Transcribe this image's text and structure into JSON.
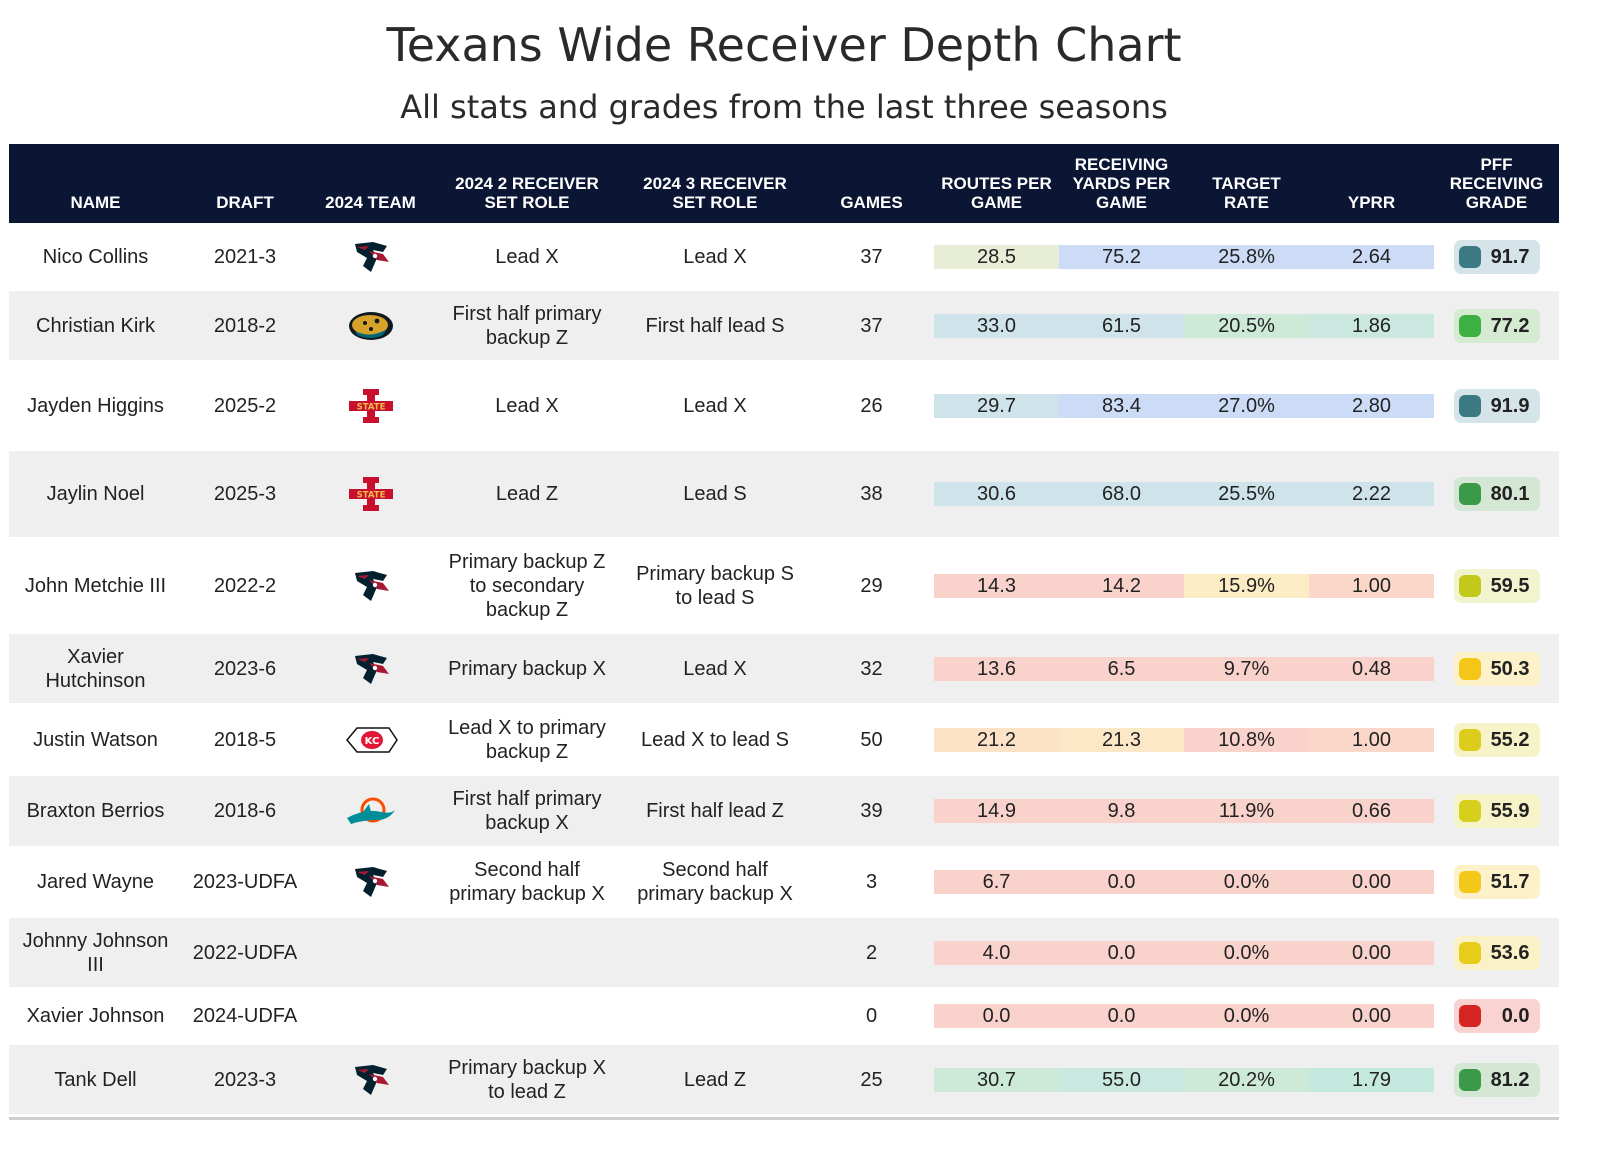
{
  "title": "Texans Wide Receiver Depth Chart",
  "subtitle": "All stats and grades from the last three seasons",
  "chart_data": {
    "type": "table",
    "columns": [
      "NAME",
      "DRAFT",
      "2024 TEAM",
      "2024 2 RECEIVER SET ROLE",
      "2024 3 RECEIVER SET ROLE",
      "GAMES",
      "ROUTES PER GAME",
      "RECEIVING YARDS PER GAME",
      "TARGET RATE",
      "YPRR",
      "PFF RECEIVING GRADE"
    ],
    "rows": [
      {
        "name": "Nico Collins",
        "draft": "2021-3",
        "team": "Texans",
        "team_icon": "texans-logo-icon",
        "role2": "Lead X",
        "role3": "Lead X",
        "games": "37",
        "routes": "28.5",
        "yards": "75.2",
        "target": "25.8%",
        "yprr": "2.64",
        "grade": "91.7",
        "colors": {
          "routes": "#e8edd6",
          "yards": "#ccdcf7",
          "target": "#ccdcf7",
          "yprr": "#ccdcf7",
          "grade_bg": "#d5e4e8",
          "grade_dot": "#3b7a82"
        }
      },
      {
        "name": "Christian Kirk",
        "draft": "2018-2",
        "team": "Jaguars",
        "team_icon": "jaguars-logo-icon",
        "role2": "First half primary backup Z",
        "role3": "First half lead S",
        "games": "37",
        "routes": "33.0",
        "yards": "61.5",
        "target": "20.5%",
        "yprr": "1.86",
        "grade": "77.2",
        "colors": {
          "routes": "#cfe4ea",
          "yards": "#cfe4ea",
          "target": "#cde9d8",
          "yprr": "#cae7e0",
          "grade_bg": "#d4ebd2",
          "grade_dot": "#3cb043"
        }
      },
      {
        "name": "Jayden Higgins",
        "draft": "2025-2",
        "team": "Iowa State",
        "team_icon": "iowa-state-logo-icon",
        "role2": "Lead X",
        "role3": "Lead X",
        "games": "26",
        "routes": "29.7",
        "yards": "83.4",
        "target": "27.0%",
        "yprr": "2.80",
        "grade": "91.9",
        "colors": {
          "routes": "#cfe4ea",
          "yards": "#ccdcf7",
          "target": "#ccdcf7",
          "yprr": "#ccdcf7",
          "grade_bg": "#d5e4e8",
          "grade_dot": "#3b7a82"
        }
      },
      {
        "name": "Jaylin Noel",
        "draft": "2025-3",
        "team": "Iowa State",
        "team_icon": "iowa-state-logo-icon",
        "role2": "Lead Z",
        "role3": "Lead S",
        "games": "38",
        "routes": "30.6",
        "yards": "68.0",
        "target": "25.5%",
        "yprr": "2.22",
        "grade": "80.1",
        "colors": {
          "routes": "#cfe4ea",
          "yards": "#cfe4ea",
          "target": "#cfe4ea",
          "yprr": "#cfe4ea",
          "grade_bg": "#d4e6d4",
          "grade_dot": "#3a9a48"
        }
      },
      {
        "name": "John Metchie III",
        "draft": "2022-2",
        "team": "Texans",
        "team_icon": "texans-logo-icon",
        "role2": "Primary backup Z to secondary backup Z",
        "role3": "Primary backup S to lead S",
        "games": "29",
        "routes": "14.3",
        "yards": "14.2",
        "target": "15.9%",
        "yprr": "1.00",
        "grade": "59.5",
        "colors": {
          "routes": "#fad2cc",
          "yards": "#fad2cc",
          "target": "#fcecc4",
          "yprr": "#fad7c9",
          "grade_bg": "#f1f4cf",
          "grade_dot": "#c3c91a"
        }
      },
      {
        "name": "Xavier Hutchinson",
        "draft": "2023-6",
        "team": "Texans",
        "team_icon": "texans-logo-icon",
        "role2": "Primary backup X",
        "role3": "Lead X",
        "games": "32",
        "routes": "13.6",
        "yards": "6.5",
        "target": "9.7%",
        "yprr": "0.48",
        "grade": "50.3",
        "colors": {
          "routes": "#fad2cc",
          "yards": "#fad2cc",
          "target": "#fad2cc",
          "yprr": "#fad2cc",
          "grade_bg": "#fcf1c8",
          "grade_dot": "#f5c518"
        }
      },
      {
        "name": "Justin Watson",
        "draft": "2018-5",
        "team": "Chiefs",
        "team_icon": "chiefs-logo-icon",
        "role2": "Lead X to primary backup Z",
        "role3": "Lead X to lead S",
        "games": "50",
        "routes": "21.2",
        "yards": "21.3",
        "target": "10.8%",
        "yprr": "1.00",
        "grade": "55.2",
        "colors": {
          "routes": "#fce3c8",
          "yards": "#fce7c6",
          "target": "#fad2cc",
          "yprr": "#fad7c9",
          "grade_bg": "#f6f3c8",
          "grade_dot": "#dccc1c"
        }
      },
      {
        "name": "Braxton Berrios",
        "draft": "2018-6",
        "team": "Dolphins",
        "team_icon": "dolphins-logo-icon",
        "role2": "First half primary backup X",
        "role3": "First half lead Z",
        "games": "39",
        "routes": "14.9",
        "yards": "9.8",
        "target": "11.9%",
        "yprr": "0.66",
        "grade": "55.9",
        "colors": {
          "routes": "#fad2cc",
          "yards": "#fad2cc",
          "target": "#fad2cc",
          "yprr": "#fad2cc",
          "grade_bg": "#f6f3c8",
          "grade_dot": "#d6cf1c"
        }
      },
      {
        "name": "Jared Wayne",
        "draft": "2023-UDFA",
        "team": "Texans",
        "team_icon": "texans-logo-icon",
        "role2": "Second half primary backup X",
        "role3": "Second half primary backup X",
        "games": "3",
        "routes": "6.7",
        "yards": "0.0",
        "target": "0.0%",
        "yprr": "0.00",
        "grade": "51.7",
        "colors": {
          "routes": "#fad2cc",
          "yards": "#fad2cc",
          "target": "#fad2cc",
          "yprr": "#fad2cc",
          "grade_bg": "#fcf1c8",
          "grade_dot": "#f2c81a"
        }
      },
      {
        "name": "Johnny Johnson III",
        "draft": "2022-UDFA",
        "team": "",
        "team_icon": "",
        "role2": "",
        "role3": "",
        "games": "2",
        "routes": "4.0",
        "yards": "0.0",
        "target": "0.0%",
        "yprr": "0.00",
        "grade": "53.6",
        "colors": {
          "routes": "#fad2cc",
          "yards": "#fad2cc",
          "target": "#fad2cc",
          "yprr": "#fad2cc",
          "grade_bg": "#faf1c6",
          "grade_dot": "#e8cc1a"
        }
      },
      {
        "name": "Xavier Johnson",
        "draft": "2024-UDFA",
        "team": "",
        "team_icon": "",
        "role2": "",
        "role3": "",
        "games": "0",
        "routes": "0.0",
        "yards": "0.0",
        "target": "0.0%",
        "yprr": "0.00",
        "grade": "0.0",
        "colors": {
          "routes": "#fad2cc",
          "yards": "#fad2cc",
          "target": "#fad2cc",
          "yprr": "#fad2cc",
          "grade_bg": "#f9d3d1",
          "grade_dot": "#d62424"
        }
      },
      {
        "name": "Tank Dell",
        "draft": "2023-3",
        "team": "Texans",
        "team_icon": "texans-logo-icon",
        "role2": "Primary backup X to lead Z",
        "role3": "Lead Z",
        "games": "25",
        "routes": "30.7",
        "yards": "55.0",
        "target": "20.2%",
        "yprr": "1.79",
        "grade": "81.2",
        "colors": {
          "routes": "#cde9d8",
          "yards": "#c9e8e0",
          "target": "#cde9d8",
          "yprr": "#c6e9df",
          "grade_bg": "#d4e6d4",
          "grade_dot": "#3a9a48"
        }
      }
    ]
  }
}
